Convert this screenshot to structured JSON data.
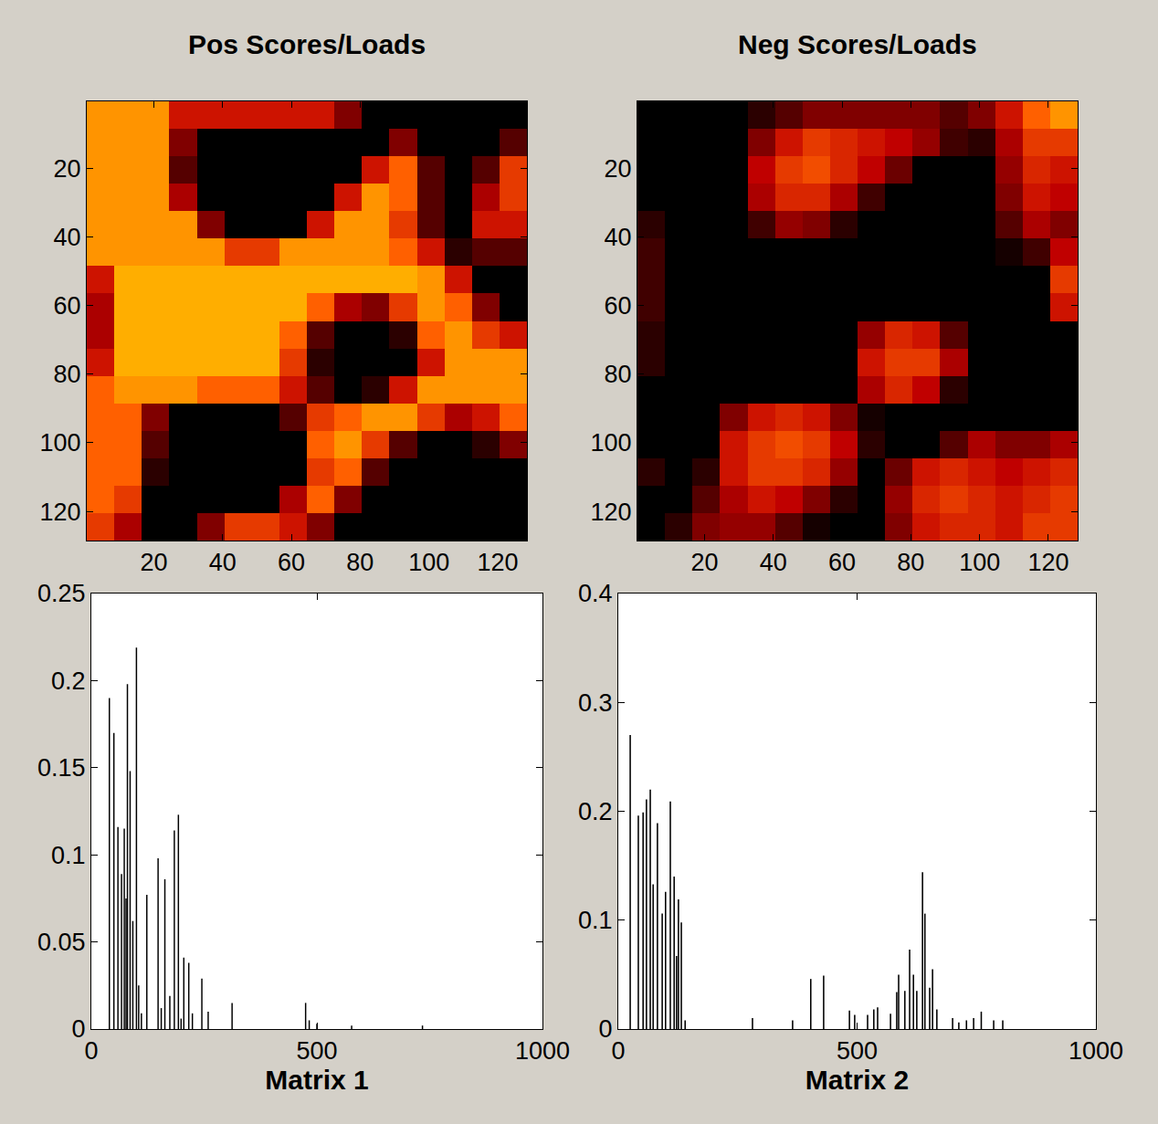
{
  "chart_data": [
    {
      "type": "heatmap",
      "title": "Pos Scores/Loads",
      "x": [
        4.5,
        12.5,
        20.5,
        28.5,
        36.5,
        44.5,
        52.5,
        60.5,
        68.5,
        76.5,
        84.5,
        92.5,
        100.5,
        108.5,
        116.5,
        124.5
      ],
      "y": [
        4.5,
        12.5,
        20.5,
        28.5,
        36.5,
        44.5,
        52.5,
        60.5,
        68.5,
        76.5,
        84.5,
        92.5,
        100.5,
        108.5,
        116.5,
        124.5
      ],
      "z": [
        [
          0.8,
          0.8,
          0.8,
          0.5,
          0.5,
          0.5,
          0.5,
          0.5,
          0.5,
          0.3,
          0,
          0,
          0,
          0,
          0,
          0
        ],
        [
          0.8,
          0.8,
          0.8,
          0.3,
          0,
          0,
          0,
          0,
          0,
          0,
          0,
          0.3,
          0,
          0,
          0,
          0.2
        ],
        [
          0.8,
          0.8,
          0.8,
          0.2,
          0,
          0,
          0,
          0,
          0,
          0,
          0.5,
          0.7,
          0.2,
          0,
          0.2,
          0.6
        ],
        [
          0.8,
          0.8,
          0.8,
          0.4,
          0,
          0,
          0,
          0,
          0,
          0.5,
          0.8,
          0.7,
          0.2,
          0,
          0.4,
          0.6
        ],
        [
          0.8,
          0.8,
          0.8,
          0.8,
          0.3,
          0,
          0,
          0,
          0.5,
          0.8,
          0.8,
          0.6,
          0.2,
          0,
          0.5,
          0.5
        ],
        [
          0.8,
          0.8,
          0.8,
          0.8,
          0.8,
          0.6,
          0.6,
          0.8,
          0.8,
          0.8,
          0.8,
          0.7,
          0.5,
          0.1,
          0.2,
          0.2
        ],
        [
          0.5,
          0.85,
          0.85,
          0.85,
          0.85,
          0.85,
          0.85,
          0.85,
          0.85,
          0.85,
          0.85,
          0.85,
          0.8,
          0.5,
          0,
          0
        ],
        [
          0.4,
          0.85,
          0.85,
          0.85,
          0.85,
          0.85,
          0.85,
          0.85,
          0.7,
          0.4,
          0.3,
          0.6,
          0.8,
          0.7,
          0.3,
          0
        ],
        [
          0.4,
          0.85,
          0.85,
          0.85,
          0.85,
          0.85,
          0.85,
          0.7,
          0.2,
          0,
          0,
          0.1,
          0.7,
          0.8,
          0.6,
          0.5
        ],
        [
          0.5,
          0.85,
          0.85,
          0.85,
          0.85,
          0.85,
          0.85,
          0.6,
          0.1,
          0,
          0,
          0,
          0.5,
          0.8,
          0.8,
          0.8
        ],
        [
          0.7,
          0.8,
          0.8,
          0.8,
          0.7,
          0.7,
          0.7,
          0.5,
          0.2,
          0,
          0.1,
          0.5,
          0.8,
          0.8,
          0.8,
          0.8
        ],
        [
          0.7,
          0.7,
          0.3,
          0,
          0,
          0,
          0,
          0.2,
          0.6,
          0.7,
          0.8,
          0.8,
          0.6,
          0.4,
          0.5,
          0.7
        ],
        [
          0.7,
          0.7,
          0.2,
          0,
          0,
          0,
          0,
          0,
          0.7,
          0.8,
          0.6,
          0.2,
          0,
          0,
          0.1,
          0.3
        ],
        [
          0.7,
          0.7,
          0.1,
          0,
          0,
          0,
          0,
          0,
          0.6,
          0.7,
          0.2,
          0,
          0,
          0,
          0,
          0
        ],
        [
          0.7,
          0.6,
          0,
          0,
          0,
          0,
          0,
          0.4,
          0.7,
          0.3,
          0,
          0,
          0,
          0,
          0,
          0
        ],
        [
          0.6,
          0.4,
          0,
          0,
          0.3,
          0.6,
          0.6,
          0.5,
          0.3,
          0,
          0,
          0,
          0,
          0,
          0,
          0
        ]
      ],
      "zlim": [
        0,
        1
      ],
      "xlim": [
        0.5,
        128.5
      ],
      "xticks": [
        20,
        40,
        60,
        80,
        100,
        120
      ],
      "ylim": [
        128.5,
        0.5
      ],
      "yticks": [
        20,
        40,
        60,
        80,
        100,
        120
      ]
    },
    {
      "type": "heatmap",
      "title": "Neg Scores/Loads",
      "x": [
        4.5,
        12.5,
        20.5,
        28.5,
        36.5,
        44.5,
        52.5,
        60.5,
        68.5,
        76.5,
        84.5,
        92.5,
        100.5,
        108.5,
        116.5,
        124.5
      ],
      "y": [
        4.5,
        12.5,
        20.5,
        28.5,
        36.5,
        44.5,
        52.5,
        60.5,
        68.5,
        76.5,
        84.5,
        92.5,
        100.5,
        108.5,
        116.5,
        124.5
      ],
      "z": [
        [
          0,
          0,
          0,
          0,
          0.1,
          0.2,
          0.3,
          0.3,
          0.3,
          0.3,
          0.3,
          0.2,
          0.3,
          0.5,
          0.7,
          0.8
        ],
        [
          0,
          0,
          0,
          0,
          0.3,
          0.5,
          0.6,
          0.55,
          0.5,
          0.45,
          0.35,
          0.15,
          0.1,
          0.4,
          0.6,
          0.6
        ],
        [
          0,
          0,
          0,
          0,
          0.45,
          0.6,
          0.65,
          0.55,
          0.45,
          0.25,
          0,
          0,
          0,
          0.35,
          0.55,
          0.5
        ],
        [
          0,
          0,
          0,
          0,
          0.4,
          0.55,
          0.55,
          0.4,
          0.15,
          0,
          0,
          0,
          0,
          0.3,
          0.5,
          0.45
        ],
        [
          0.1,
          0,
          0,
          0,
          0.15,
          0.35,
          0.3,
          0.1,
          0,
          0,
          0,
          0,
          0,
          0.2,
          0.4,
          0.3
        ],
        [
          0.15,
          0,
          0,
          0,
          0,
          0,
          0,
          0,
          0,
          0,
          0,
          0,
          0,
          0.05,
          0.15,
          0.45
        ],
        [
          0.15,
          0,
          0,
          0,
          0,
          0,
          0,
          0,
          0,
          0,
          0,
          0,
          0,
          0,
          0,
          0.6
        ],
        [
          0.15,
          0,
          0,
          0,
          0,
          0,
          0,
          0,
          0,
          0,
          0,
          0,
          0,
          0,
          0,
          0.5
        ],
        [
          0.1,
          0,
          0,
          0,
          0,
          0,
          0,
          0,
          0.35,
          0.55,
          0.5,
          0.2,
          0,
          0,
          0,
          0
        ],
        [
          0.1,
          0,
          0,
          0,
          0,
          0,
          0,
          0,
          0.5,
          0.6,
          0.6,
          0.4,
          0,
          0,
          0,
          0
        ],
        [
          0,
          0,
          0,
          0,
          0,
          0,
          0,
          0,
          0.4,
          0.55,
          0.45,
          0.1,
          0,
          0,
          0,
          0
        ],
        [
          0,
          0,
          0,
          0.3,
          0.5,
          0.55,
          0.5,
          0.3,
          0.05,
          0,
          0,
          0,
          0,
          0,
          0,
          0
        ],
        [
          0,
          0,
          0,
          0.5,
          0.6,
          0.65,
          0.6,
          0.45,
          0.1,
          0,
          0,
          0.2,
          0.4,
          0.3,
          0.3,
          0.4
        ],
        [
          0.1,
          0,
          0.1,
          0.5,
          0.6,
          0.6,
          0.55,
          0.35,
          0,
          0.25,
          0.5,
          0.55,
          0.5,
          0.45,
          0.5,
          0.55
        ],
        [
          0,
          0,
          0.2,
          0.4,
          0.5,
          0.45,
          0.3,
          0.1,
          0,
          0.35,
          0.55,
          0.6,
          0.55,
          0.5,
          0.55,
          0.6
        ],
        [
          0,
          0.1,
          0.3,
          0.35,
          0.35,
          0.2,
          0.05,
          0,
          0,
          0.3,
          0.5,
          0.55,
          0.55,
          0.5,
          0.6,
          0.6
        ]
      ],
      "zlim": [
        0,
        1
      ],
      "xlim": [
        0.5,
        128.5
      ],
      "xticks": [
        20,
        40,
        60,
        80,
        100,
        120
      ],
      "ylim": [
        128.5,
        0.5
      ],
      "yticks": [
        20,
        40,
        60,
        80,
        100,
        120
      ]
    },
    {
      "type": "bar",
      "xlabel": "Matrix 1",
      "color": "#000000",
      "grid": false,
      "x": [
        40,
        50,
        59,
        67,
        73,
        77,
        80,
        86,
        92,
        100,
        105,
        111,
        123,
        148,
        155,
        163,
        174,
        184,
        193,
        199,
        205,
        216,
        224,
        245,
        259,
        312,
        475,
        483,
        500,
        577,
        734
      ],
      "values": [
        0.19,
        0.17,
        0.116,
        0.089,
        0.115,
        0.075,
        0.198,
        0.148,
        0.062,
        0.219,
        0.025,
        0.009,
        0.077,
        0.098,
        0.012,
        0.086,
        0.019,
        0.114,
        0.123,
        0.006,
        0.041,
        0.038,
        0.009,
        0.029,
        0.01,
        0.015,
        0.015,
        0.005,
        0.003,
        0.002,
        0.002
      ],
      "xlim": [
        0,
        1000
      ],
      "xticks": [
        0,
        500,
        1000
      ],
      "ylim": [
        0,
        0.25
      ],
      "yticks": [
        0,
        0.05,
        0.1,
        0.15,
        0.2,
        0.25
      ]
    },
    {
      "type": "bar",
      "xlabel": "Matrix 2",
      "color": "#000000",
      "grid": false,
      "x": [
        25,
        42,
        52,
        59,
        67,
        73,
        82,
        92,
        99,
        109,
        117,
        122,
        126,
        132,
        140,
        281,
        365,
        403,
        430,
        484,
        495,
        522,
        535,
        543,
        570,
        583,
        587,
        600,
        610,
        618,
        625,
        637,
        642,
        652,
        658,
        667,
        700,
        713,
        729,
        744,
        760,
        786,
        805
      ],
      "values": [
        0.27,
        0.196,
        0.199,
        0.211,
        0.22,
        0.133,
        0.189,
        0.106,
        0.126,
        0.209,
        0.14,
        0.067,
        0.119,
        0.098,
        0.008,
        0.01,
        0.008,
        0.046,
        0.049,
        0.017,
        0.013,
        0.013,
        0.018,
        0.02,
        0.014,
        0.034,
        0.05,
        0.035,
        0.073,
        0.05,
        0.035,
        0.144,
        0.106,
        0.038,
        0.055,
        0.018,
        0.01,
        0.006,
        0.008,
        0.01,
        0.016,
        0.008,
        0.008
      ],
      "xlim": [
        0,
        1000
      ],
      "xticks": [
        0,
        500,
        1000
      ],
      "ylim": [
        0,
        0.4
      ],
      "yticks": [
        0,
        0.1,
        0.2,
        0.3,
        0.4
      ]
    }
  ]
}
